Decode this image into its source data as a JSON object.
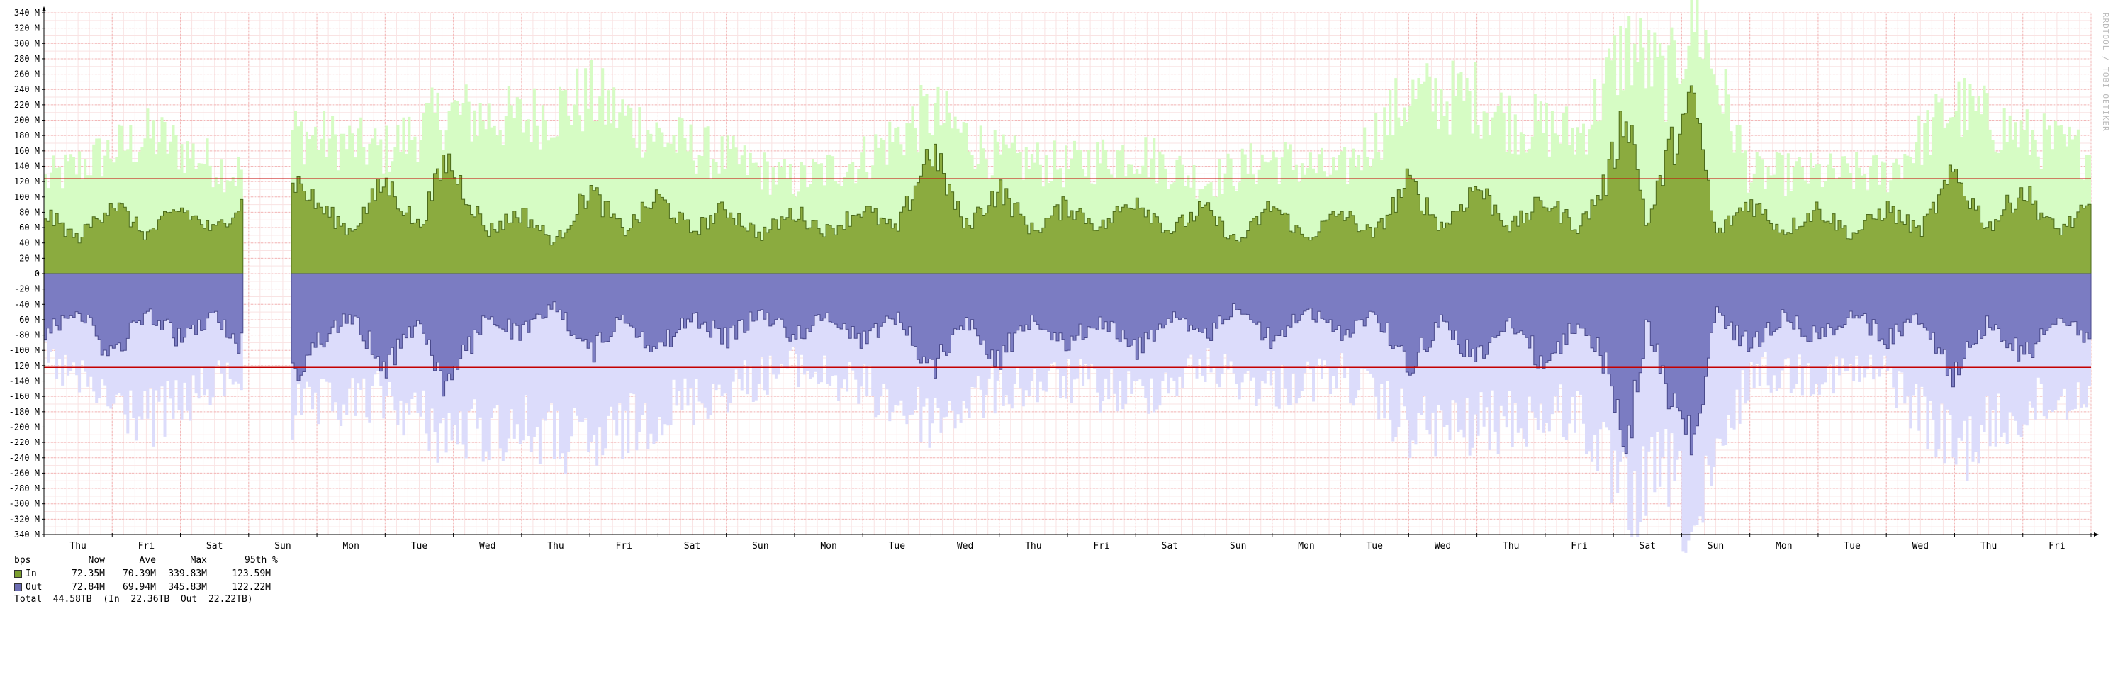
{
  "colors": {
    "in_fill": "#8bab3f",
    "in_line": "#4b6a1a",
    "in_max": "#d6fcc4",
    "out_fill": "#7b7cc2",
    "out_line": "#4a4a8c",
    "out_max": "#dcdcfb",
    "grid_major": "#f3b8b8",
    "grid_minor": "#f9e3e3",
    "percentile_line": "#c40000"
  },
  "watermark": "RRDTOOL / TOBI OETIKER",
  "legend": {
    "headers": {
      "unit": "bps",
      "now": "Now",
      "ave": "Ave",
      "max": "Max",
      "pct": "95th %"
    },
    "rows": [
      {
        "name": "In",
        "now": "72.35M",
        "ave": "70.39M",
        "max": "339.83M",
        "pct": "123.59M",
        "color": "#7b9e2f"
      },
      {
        "name": "Out",
        "now": "72.84M",
        "ave": "69.94M",
        "max": "345.83M",
        "pct": "122.22M",
        "color": "#6b6cb2"
      }
    ],
    "total": {
      "label": "Total",
      "value": "44.58TB",
      "in_label": "(In",
      "in_value": "22.36TB",
      "out_label": "Out",
      "out_value": "22.22TB)"
    }
  },
  "chart_data": {
    "type": "area",
    "y_unit": "bps (M)",
    "ylim": [
      -340,
      340
    ],
    "y_ticks": [
      340,
      320,
      300,
      280,
      260,
      240,
      220,
      200,
      180,
      160,
      140,
      120,
      100,
      80,
      60,
      40,
      20,
      0,
      -20,
      -40,
      -60,
      -80,
      -100,
      -120,
      -140,
      -160,
      -180,
      -200,
      -220,
      -240,
      -260,
      -280,
      -300,
      -320,
      -340
    ],
    "y_tick_labels": [
      "340 M",
      "320 M",
      "300 M",
      "280 M",
      "260 M",
      "240 M",
      "220 M",
      "200 M",
      "180 M",
      "160 M",
      "140 M",
      "120 M",
      "100 M",
      "80 M",
      "60 M",
      "40 M",
      "20 M",
      "0",
      "-20 M",
      "-40 M",
      "-60 M",
      "-80 M",
      "-100 M",
      "-120 M",
      "-140 M",
      "-160 M",
      "-180 M",
      "-200 M",
      "-220 M",
      "-240 M",
      "-260 M",
      "-280 M",
      "-300 M",
      "-320 M",
      "-340 M"
    ],
    "x_labels": [
      "Thu",
      "Fri",
      "Sat",
      "Sun",
      "Mon",
      "Tue",
      "Wed",
      "Thu",
      "Fri",
      "Sat",
      "Sun",
      "Mon",
      "Tue",
      "Wed",
      "Thu",
      "Fri",
      "Sat",
      "Sun",
      "Mon",
      "Tue",
      "Wed",
      "Thu",
      "Fri",
      "Sat",
      "Sun",
      "Mon",
      "Tue",
      "Wed",
      "Thu",
      "Fri"
    ],
    "x_range_days": [
      0,
      30
    ],
    "gap_days": [
      2.9,
      3.6
    ],
    "percentile_95": {
      "in": 123.59,
      "out": -122.22
    },
    "series": [
      {
        "name": "In",
        "daily_avg_peaks": [
          [
            0,
            80
          ],
          [
            0.5,
            45
          ],
          [
            1.0,
            95
          ],
          [
            1.5,
            50
          ],
          [
            2.0,
            85
          ],
          [
            2.5,
            55
          ],
          [
            2.8,
            85
          ],
          [
            3.6,
            130
          ],
          [
            4.0,
            90
          ],
          [
            4.5,
            55
          ],
          [
            5.0,
            120
          ],
          [
            5.5,
            60
          ],
          [
            5.9,
            150
          ],
          [
            6.5,
            55
          ],
          [
            7.0,
            80
          ],
          [
            7.5,
            40
          ],
          [
            8.0,
            110
          ],
          [
            8.5,
            55
          ],
          [
            9.0,
            100
          ],
          [
            9.5,
            55
          ],
          [
            10.0,
            85
          ],
          [
            10.5,
            50
          ],
          [
            11.0,
            80
          ],
          [
            11.5,
            55
          ],
          [
            12.0,
            85
          ],
          [
            12.5,
            55
          ],
          [
            13.0,
            165
          ],
          [
            13.5,
            60
          ],
          [
            14.0,
            110
          ],
          [
            14.5,
            55
          ],
          [
            15.0,
            90
          ],
          [
            15.5,
            60
          ],
          [
            16.0,
            100
          ],
          [
            16.5,
            55
          ],
          [
            17.0,
            85
          ],
          [
            17.5,
            40
          ],
          [
            18.0,
            90
          ],
          [
            18.5,
            45
          ],
          [
            19.0,
            80
          ],
          [
            19.5,
            50
          ],
          [
            20.0,
            120
          ],
          [
            20.5,
            60
          ],
          [
            21.0,
            115
          ],
          [
            21.5,
            60
          ],
          [
            22.0,
            95
          ],
          [
            22.5,
            60
          ],
          [
            22.9,
            120
          ],
          [
            23.2,
            220
          ],
          [
            23.5,
            60
          ],
          [
            23.8,
            155
          ],
          [
            24.2,
            225
          ],
          [
            24.5,
            50
          ],
          [
            25.0,
            95
          ],
          [
            25.5,
            55
          ],
          [
            26.0,
            85
          ],
          [
            26.5,
            50
          ],
          [
            27.0,
            85
          ],
          [
            27.5,
            55
          ],
          [
            28.0,
            130
          ],
          [
            28.5,
            60
          ],
          [
            29.0,
            110
          ],
          [
            29.5,
            55
          ],
          [
            30.0,
            85
          ]
        ],
        "max_peaks": [
          [
            0,
            120
          ],
          [
            1.0,
            160
          ],
          [
            1.6,
            180
          ],
          [
            2.8,
            130
          ],
          [
            3.6,
            185
          ],
          [
            5.0,
            160
          ],
          [
            5.9,
            210
          ],
          [
            7.0,
            200
          ],
          [
            8.0,
            230
          ],
          [
            9.0,
            180
          ],
          [
            10.0,
            150
          ],
          [
            11.0,
            120
          ],
          [
            12.0,
            150
          ],
          [
            13.0,
            210
          ],
          [
            14.0,
            150
          ],
          [
            15.0,
            140
          ],
          [
            16.0,
            160
          ],
          [
            17.0,
            120
          ],
          [
            18.0,
            150
          ],
          [
            19.0,
            130
          ],
          [
            20.0,
            230
          ],
          [
            21.0,
            230
          ],
          [
            21.5,
            200
          ],
          [
            22.5,
            180
          ],
          [
            23.2,
            300
          ],
          [
            23.8,
            250
          ],
          [
            24.2,
            340
          ],
          [
            25.0,
            130
          ],
          [
            26.0,
            130
          ],
          [
            27.0,
            130
          ],
          [
            28.0,
            220
          ],
          [
            29.0,
            180
          ],
          [
            30.0,
            155
          ]
        ]
      },
      {
        "name": "Out",
        "daily_avg_peaks": [
          [
            0,
            -80
          ],
          [
            0.5,
            -45
          ],
          [
            1.0,
            -110
          ],
          [
            1.5,
            -50
          ],
          [
            2.0,
            -85
          ],
          [
            2.5,
            -55
          ],
          [
            2.8,
            -85
          ],
          [
            3.6,
            -135
          ],
          [
            4.0,
            -90
          ],
          [
            4.5,
            -55
          ],
          [
            5.0,
            -120
          ],
          [
            5.5,
            -60
          ],
          [
            5.9,
            -150
          ],
          [
            6.5,
            -55
          ],
          [
            7.0,
            -80
          ],
          [
            7.5,
            -40
          ],
          [
            8.0,
            -105
          ],
          [
            8.5,
            -55
          ],
          [
            9.0,
            -100
          ],
          [
            9.5,
            -55
          ],
          [
            10.0,
            -85
          ],
          [
            10.5,
            -50
          ],
          [
            11.0,
            -80
          ],
          [
            11.5,
            -55
          ],
          [
            12.0,
            -85
          ],
          [
            12.5,
            -55
          ],
          [
            13.0,
            -125
          ],
          [
            13.5,
            -60
          ],
          [
            14.0,
            -110
          ],
          [
            14.5,
            -55
          ],
          [
            15.0,
            -90
          ],
          [
            15.5,
            -60
          ],
          [
            16.0,
            -100
          ],
          [
            16.5,
            -55
          ],
          [
            17.0,
            -85
          ],
          [
            17.5,
            -40
          ],
          [
            18.0,
            -90
          ],
          [
            18.5,
            -45
          ],
          [
            19.0,
            -80
          ],
          [
            19.5,
            -50
          ],
          [
            20.0,
            -120
          ],
          [
            20.5,
            -60
          ],
          [
            21.0,
            -115
          ],
          [
            21.5,
            -60
          ],
          [
            22.0,
            -120
          ],
          [
            22.5,
            -60
          ],
          [
            22.9,
            -120
          ],
          [
            23.2,
            -225
          ],
          [
            23.5,
            -60
          ],
          [
            23.8,
            -160
          ],
          [
            24.2,
            -225
          ],
          [
            24.5,
            -50
          ],
          [
            25.0,
            -95
          ],
          [
            25.5,
            -55
          ],
          [
            26.0,
            -85
          ],
          [
            26.5,
            -50
          ],
          [
            27.0,
            -85
          ],
          [
            27.5,
            -55
          ],
          [
            28.0,
            -130
          ],
          [
            28.5,
            -60
          ],
          [
            29.0,
            -110
          ],
          [
            29.5,
            -55
          ],
          [
            30.0,
            -85
          ]
        ],
        "max_peaks": [
          [
            0,
            -110
          ],
          [
            1.0,
            -170
          ],
          [
            1.6,
            -190
          ],
          [
            2.8,
            -130
          ],
          [
            3.6,
            -185
          ],
          [
            5.0,
            -160
          ],
          [
            5.9,
            -210
          ],
          [
            7.0,
            -200
          ],
          [
            8.0,
            -230
          ],
          [
            9.0,
            -180
          ],
          [
            10.0,
            -150
          ],
          [
            11.0,
            -120
          ],
          [
            12.0,
            -150
          ],
          [
            13.0,
            -190
          ],
          [
            14.0,
            -150
          ],
          [
            15.0,
            -140
          ],
          [
            16.0,
            -160
          ],
          [
            17.0,
            -120
          ],
          [
            18.0,
            -150
          ],
          [
            19.0,
            -130
          ],
          [
            20.0,
            -200
          ],
          [
            21.0,
            -200
          ],
          [
            21.5,
            -190
          ],
          [
            22.5,
            -180
          ],
          [
            23.2,
            -305
          ],
          [
            23.8,
            -250
          ],
          [
            24.2,
            -345
          ],
          [
            25.0,
            -130
          ],
          [
            26.0,
            -130
          ],
          [
            27.0,
            -130
          ],
          [
            28.0,
            -230
          ],
          [
            29.0,
            -180
          ],
          [
            30.0,
            -150
          ]
        ]
      }
    ]
  }
}
